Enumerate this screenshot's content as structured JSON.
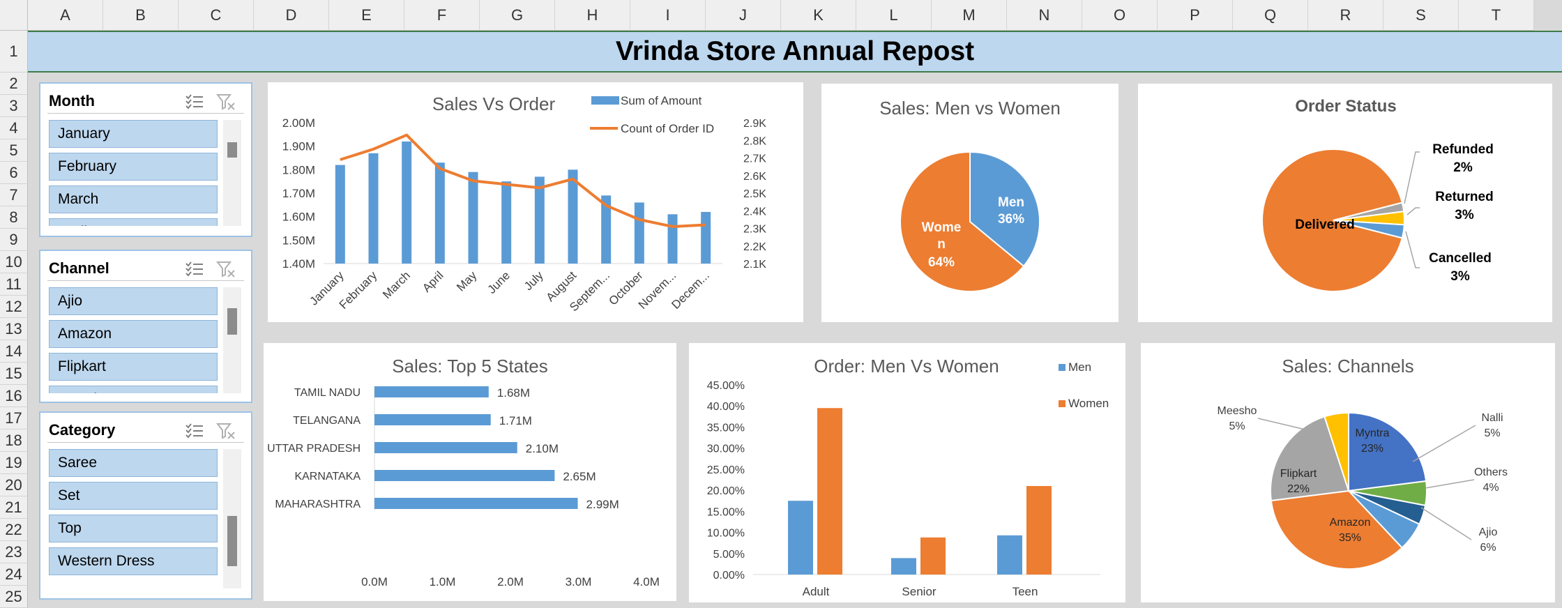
{
  "sheet": {
    "columns": [
      "A",
      "B",
      "C",
      "D",
      "E",
      "F",
      "G",
      "H",
      "I",
      "J",
      "K",
      "L",
      "M",
      "N",
      "O",
      "P",
      "Q",
      "R",
      "S",
      "T"
    ],
    "rows": [
      "1",
      "2",
      "3",
      "4",
      "5",
      "6",
      "7",
      "8",
      "9",
      "10",
      "11",
      "12",
      "13",
      "14",
      "15",
      "16",
      "17",
      "18",
      "19",
      "20",
      "21",
      "22",
      "23",
      "24",
      "25"
    ]
  },
  "title": "Vrinda Store Annual Repost",
  "slicers": {
    "month": {
      "title": "Month",
      "items": [
        "January",
        "February",
        "March",
        "April"
      ]
    },
    "channel": {
      "title": "Channel",
      "items": [
        "Ajio",
        "Amazon",
        "Flipkart",
        "Meesho"
      ]
    },
    "category": {
      "title": "Category",
      "items": [
        "Saree",
        "Set",
        "Top",
        "Western Dress"
      ]
    }
  },
  "colors": {
    "blue": "#5b9bd5",
    "orange": "#ed7d31",
    "gray": "#a5a5a5",
    "yellow": "#ffc000",
    "darkblue": "#4472c4",
    "green": "#70ad47",
    "navy": "#255e91"
  },
  "chart_data": [
    {
      "id": "sales_vs_order",
      "type": "bar",
      "title": "Sales Vs Order",
      "categories": [
        "January",
        "February",
        "March",
        "April",
        "May",
        "June",
        "July",
        "August",
        "Septem...",
        "October",
        "Novem...",
        "Decem..."
      ],
      "series": [
        {
          "name": "Sum of Amount",
          "type": "bar",
          "axis": "left",
          "values": [
            1.82,
            1.87,
            1.92,
            1.83,
            1.79,
            1.75,
            1.77,
            1.8,
            1.69,
            1.66,
            1.61,
            1.62
          ]
        },
        {
          "name": "Count of Order ID",
          "type": "line",
          "axis": "right",
          "values": [
            2.69,
            2.75,
            2.83,
            2.64,
            2.57,
            2.55,
            2.53,
            2.58,
            2.43,
            2.35,
            2.31,
            2.32
          ]
        }
      ],
      "ylim": [
        1.4,
        2.0
      ],
      "yticks": [
        "1.40M",
        "1.50M",
        "1.60M",
        "1.70M",
        "1.80M",
        "1.90M",
        "2.00M"
      ],
      "y2lim": [
        2.1,
        2.9
      ],
      "y2ticks": [
        "2.1K",
        "2.2K",
        "2.3K",
        "2.4K",
        "2.5K",
        "2.6K",
        "2.7K",
        "2.8K",
        "2.9K"
      ],
      "legend": "top-right"
    },
    {
      "id": "sales_men_women",
      "type": "pie",
      "title": "Sales: Men vs Women",
      "slices": [
        {
          "name": "Men",
          "value": 36,
          "label": "Men",
          "pct": "36%",
          "color": "#5b9bd5"
        },
        {
          "name": "Women",
          "value": 64,
          "label": "Wome n",
          "pct": "64%",
          "color": "#ed7d31"
        }
      ]
    },
    {
      "id": "order_status",
      "type": "pie",
      "title": "Order Status",
      "slices": [
        {
          "name": "Delivered",
          "value": 92,
          "label": "Delivered",
          "pct": "",
          "color": "#ed7d31"
        },
        {
          "name": "Refunded",
          "value": 2,
          "label": "Refunded",
          "pct": "2%",
          "color": "#a5a5a5"
        },
        {
          "name": "Returned",
          "value": 3,
          "label": "Returned",
          "pct": "3%",
          "color": "#ffc000"
        },
        {
          "name": "Cancelled",
          "value": 3,
          "label": "Cancelled",
          "pct": "3%",
          "color": "#5b9bd5"
        }
      ]
    },
    {
      "id": "top5_states",
      "type": "bar",
      "orientation": "horizontal",
      "title": "Sales: Top 5 States",
      "categories": [
        "TAMIL NADU",
        "TELANGANA",
        "UTTAR PRADESH",
        "KARNATAKA",
        "MAHARASHTRA"
      ],
      "values": [
        1.68,
        1.71,
        2.1,
        2.65,
        2.99
      ],
      "labels": [
        "1.68M",
        "1.71M",
        "2.10M",
        "2.65M",
        "2.99M"
      ],
      "xlim": [
        0,
        4
      ],
      "xticks": [
        "0.0M",
        "1.0M",
        "2.0M",
        "3.0M",
        "4.0M"
      ]
    },
    {
      "id": "order_men_women",
      "type": "bar",
      "title": "Order: Men Vs Women",
      "categories": [
        "Adult",
        "Senior",
        "Teen"
      ],
      "series": [
        {
          "name": "Men",
          "values": [
            17.5,
            3.9,
            9.3
          ]
        },
        {
          "name": "Women",
          "values": [
            39.5,
            8.8,
            21.0
          ]
        }
      ],
      "ylim": [
        0,
        45
      ],
      "yticks": [
        "0.00%",
        "5.00%",
        "10.00%",
        "15.00%",
        "20.00%",
        "25.00%",
        "30.00%",
        "35.00%",
        "40.00%",
        "45.00%"
      ],
      "legend": "right"
    },
    {
      "id": "sales_channels",
      "type": "pie",
      "title": "Sales: Channels",
      "slices": [
        {
          "name": "Myntra",
          "value": 23,
          "label": "Myntra",
          "pct": "23%",
          "color": "#4472c4"
        },
        {
          "name": "Nalli",
          "value": 5,
          "label": "Nalli",
          "pct": "5%",
          "color": "#70ad47"
        },
        {
          "name": "Others",
          "value": 4,
          "label": "Others",
          "pct": "4%",
          "color": "#255e91"
        },
        {
          "name": "Ajio",
          "value": 6,
          "label": "Ajio",
          "pct": "6%",
          "color": "#5b9bd5"
        },
        {
          "name": "Amazon",
          "value": 35,
          "label": "Amazon",
          "pct": "35%",
          "color": "#ed7d31"
        },
        {
          "name": "Flipkart",
          "value": 22,
          "label": "Flipkart",
          "pct": "22%",
          "color": "#a5a5a5"
        },
        {
          "name": "Meesho",
          "value": 5,
          "label": "Meesho",
          "pct": "5%",
          "color": "#ffc000"
        }
      ]
    }
  ]
}
